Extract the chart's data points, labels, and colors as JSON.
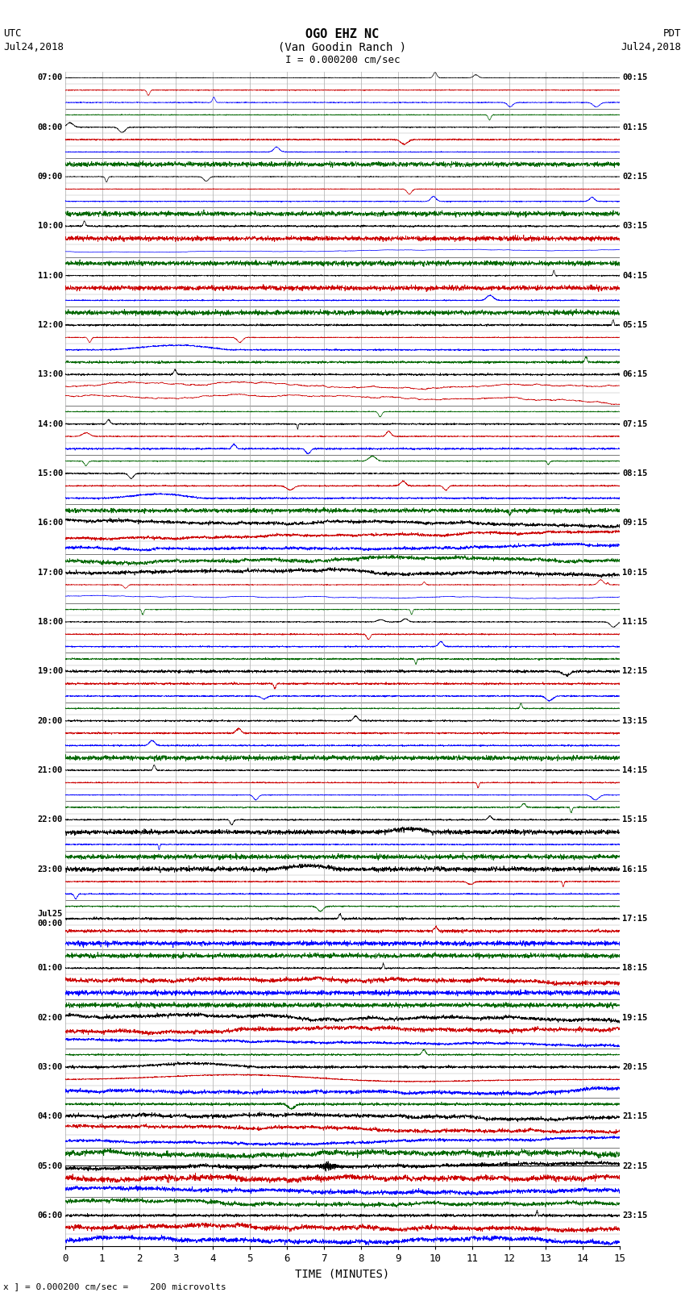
{
  "title_line1": "OGO EHZ NC",
  "title_line2": "(Van Goodin Ranch )",
  "title_line3": "I = 0.000200 cm/sec",
  "left_top_label1": "UTC",
  "left_top_label2": "Jul24,2018",
  "right_top_label1": "PDT",
  "right_top_label2": "Jul24,2018",
  "bottom_label": "TIME (MINUTES)",
  "bottom_note": "x ] = 0.000200 cm/sec =    200 microvolts",
  "xlim": [
    0,
    15
  ],
  "xticks": [
    0,
    1,
    2,
    3,
    4,
    5,
    6,
    7,
    8,
    9,
    10,
    11,
    12,
    13,
    14,
    15
  ],
  "figsize": [
    8.5,
    16.13
  ],
  "dpi": 100,
  "bg_color": "#ffffff",
  "grid_color": "#aaaaaa",
  "left_times_utc": [
    "07:00",
    "",
    "",
    "",
    "08:00",
    "",
    "",
    "",
    "09:00",
    "",
    "",
    "",
    "10:00",
    "",
    "",
    "",
    "11:00",
    "",
    "",
    "",
    "12:00",
    "",
    "",
    "",
    "13:00",
    "",
    "",
    "",
    "14:00",
    "",
    "",
    "",
    "15:00",
    "",
    "",
    "",
    "16:00",
    "",
    "",
    "",
    "17:00",
    "",
    "",
    "",
    "18:00",
    "",
    "",
    "",
    "19:00",
    "",
    "",
    "",
    "20:00",
    "",
    "",
    "",
    "21:00",
    "",
    "",
    "",
    "22:00",
    "",
    "",
    "",
    "23:00",
    "",
    "",
    "",
    "Jul25\n00:00",
    "",
    "",
    "",
    "01:00",
    "",
    "",
    "",
    "02:00",
    "",
    "",
    "",
    "03:00",
    "",
    "",
    "",
    "04:00",
    "",
    "",
    "",
    "05:00",
    "",
    "",
    "",
    "06:00",
    "",
    ""
  ],
  "right_times_pdt": [
    "00:15",
    "",
    "",
    "",
    "01:15",
    "",
    "",
    "",
    "02:15",
    "",
    "",
    "",
    "03:15",
    "",
    "",
    "",
    "04:15",
    "",
    "",
    "",
    "05:15",
    "",
    "",
    "",
    "06:15",
    "",
    "",
    "",
    "07:15",
    "",
    "",
    "",
    "08:15",
    "",
    "",
    "",
    "09:15",
    "",
    "",
    "",
    "10:15",
    "",
    "",
    "",
    "11:15",
    "",
    "",
    "",
    "12:15",
    "",
    "",
    "",
    "13:15",
    "",
    "",
    "",
    "14:15",
    "",
    "",
    "",
    "15:15",
    "",
    "",
    "",
    "16:15",
    "",
    "",
    "",
    "17:15",
    "",
    "",
    "",
    "18:15",
    "",
    "",
    "",
    "19:15",
    "",
    "",
    "",
    "20:15",
    "",
    "",
    "",
    "21:15",
    "",
    "",
    "",
    "22:15",
    "",
    "",
    "",
    "23:15",
    "",
    ""
  ],
  "n_rows": 95
}
